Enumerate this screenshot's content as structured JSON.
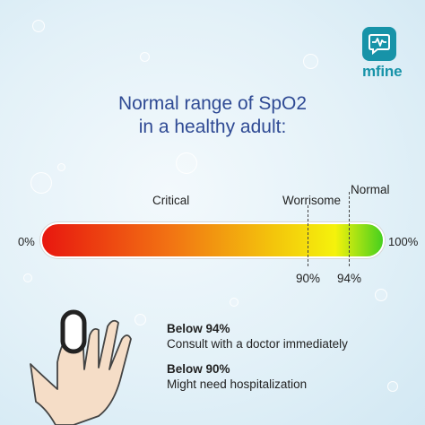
{
  "brand": {
    "name": "mfine",
    "icon": "heartbeat-chat-icon",
    "color": "#1793a8"
  },
  "title": {
    "line1": "Normal range of SpO2",
    "line2": "in a healthy adult:",
    "color": "#2f4a94"
  },
  "scale": {
    "min_label": "0%",
    "max_label": "100%",
    "zones": {
      "critical": "Critical",
      "worrisome": "Worrisome",
      "normal": "Normal"
    },
    "thresholds": [
      {
        "label": "90%",
        "value": 90
      },
      {
        "label": "94%",
        "value": 94
      }
    ],
    "gradient_colors": [
      "#e8170f",
      "#f27413",
      "#f3c50c",
      "#f5f20c",
      "#46d01e"
    ]
  },
  "info": [
    {
      "heading": "Below 94%",
      "text": "Consult with a doctor immediately"
    },
    {
      "heading": "Below 90%",
      "text": "Might need hospitalization"
    }
  ],
  "illustration": "hand-with-pulse-oximeter-icon"
}
